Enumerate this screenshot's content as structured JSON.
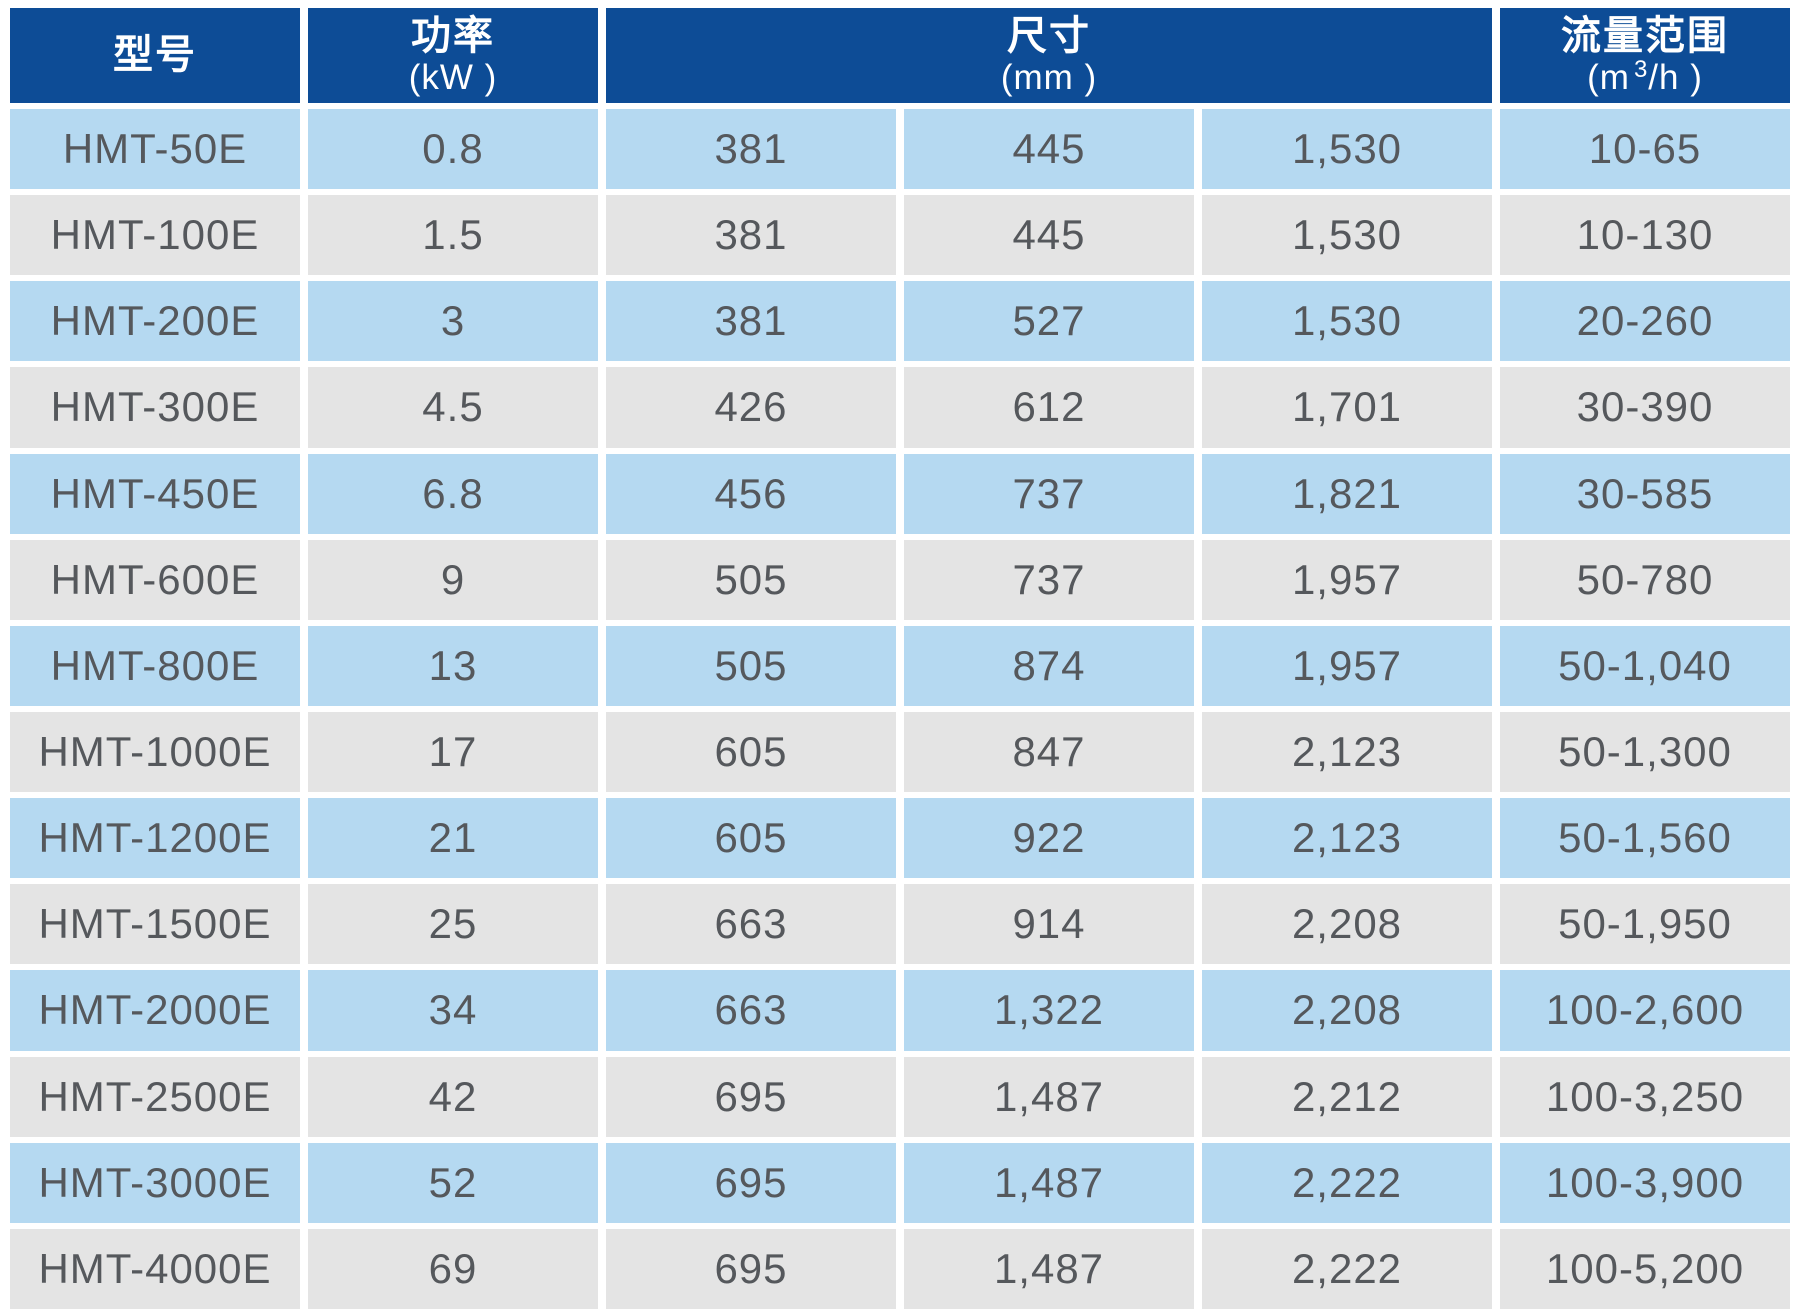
{
  "colors": {
    "page_bg": "#ffffff",
    "header_bg": "#0d4c96",
    "header_text": "#ffffff",
    "row_blue": "#b5d9f1",
    "row_gray": "#e4e4e4",
    "body_text": "#55585c"
  },
  "table": {
    "headers": {
      "model": {
        "title": "型号"
      },
      "power": {
        "title": "功率",
        "unit": "(kW )"
      },
      "dimensions": {
        "title": "尺寸",
        "unit": "(mm )"
      },
      "flow": {
        "title": "流量范围",
        "unit_open": "(m",
        "unit_sup": "3",
        "unit_close": "/h )"
      }
    },
    "rows": [
      {
        "model": "HMT-50E",
        "power": "0.8",
        "dim1": "381",
        "dim2": "445",
        "dim3": "1,530",
        "flow": "10-65"
      },
      {
        "model": "HMT-100E",
        "power": "1.5",
        "dim1": "381",
        "dim2": "445",
        "dim3": "1,530",
        "flow": "10-130"
      },
      {
        "model": "HMT-200E",
        "power": "3",
        "dim1": "381",
        "dim2": "527",
        "dim3": "1,530",
        "flow": "20-260"
      },
      {
        "model": "HMT-300E",
        "power": "4.5",
        "dim1": "426",
        "dim2": "612",
        "dim3": "1,701",
        "flow": "30-390"
      },
      {
        "model": "HMT-450E",
        "power": "6.8",
        "dim1": "456",
        "dim2": "737",
        "dim3": "1,821",
        "flow": "30-585"
      },
      {
        "model": "HMT-600E",
        "power": "9",
        "dim1": "505",
        "dim2": "737",
        "dim3": "1,957",
        "flow": "50-780"
      },
      {
        "model": "HMT-800E",
        "power": "13",
        "dim1": "505",
        "dim2": "874",
        "dim3": "1,957",
        "flow": "50-1,040"
      },
      {
        "model": "HMT-1000E",
        "power": "17",
        "dim1": "605",
        "dim2": "847",
        "dim3": "2,123",
        "flow": "50-1,300"
      },
      {
        "model": "HMT-1200E",
        "power": "21",
        "dim1": "605",
        "dim2": "922",
        "dim3": "2,123",
        "flow": "50-1,560"
      },
      {
        "model": "HMT-1500E",
        "power": "25",
        "dim1": "663",
        "dim2": "914",
        "dim3": "2,208",
        "flow": "50-1,950"
      },
      {
        "model": "HMT-2000E",
        "power": "34",
        "dim1": "663",
        "dim2": "1,322",
        "dim3": "2,208",
        "flow": "100-2,600"
      },
      {
        "model": "HMT-2500E",
        "power": "42",
        "dim1": "695",
        "dim2": "1,487",
        "dim3": "2,212",
        "flow": "100-3,250"
      },
      {
        "model": "HMT-3000E",
        "power": "52",
        "dim1": "695",
        "dim2": "1,487",
        "dim3": "2,222",
        "flow": "100-3,900"
      },
      {
        "model": "HMT-4000E",
        "power": "69",
        "dim1": "695",
        "dim2": "1,487",
        "dim3": "2,222",
        "flow": "100-5,200"
      }
    ]
  }
}
